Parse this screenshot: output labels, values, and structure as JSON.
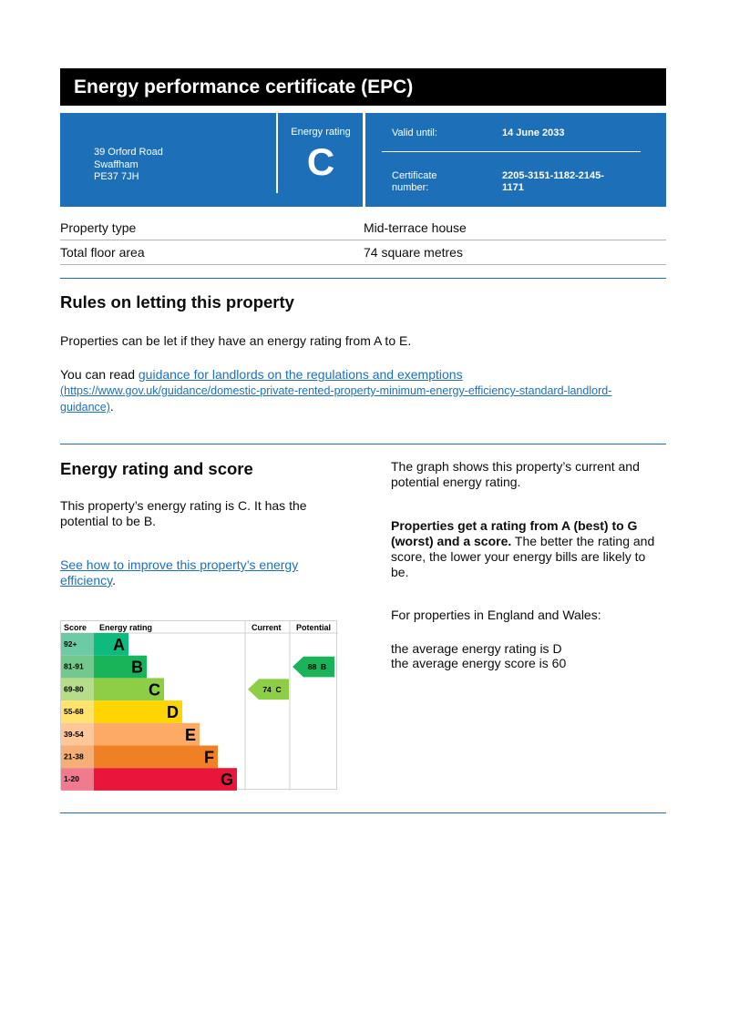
{
  "header": {
    "title": "Energy performance certificate (EPC)"
  },
  "summary": {
    "address": [
      "39 Orford Road",
      "Swaffham",
      "PE37 7JH"
    ],
    "energy_rating_label": "Energy rating",
    "energy_rating": "C",
    "valid_until_label": "Valid until:",
    "valid_until": "14 June 2033",
    "certificate_label": [
      "Certificate",
      "number:"
    ],
    "certificate_number": [
      "2205-3151-1182-2145-",
      "1171"
    ]
  },
  "property": [
    {
      "label": "Property type",
      "value": "Mid-terrace house"
    },
    {
      "label": "Total floor area",
      "value": "74 square metres"
    }
  ],
  "letting": {
    "heading": "Rules on letting this property",
    "text": "Properties can be let if they have an energy rating from A to E.",
    "read_prefix": "You can read ",
    "link_text": "guidance for landlords on the regulations and exemptions",
    "link_url_line1": "(https://www.gov.uk/guidance/domestic-private-rented-property-minimum-energy-efficiency-standard-landlord-",
    "link_url_line2": "guidance)",
    "end": "."
  },
  "rating": {
    "heading": "Energy rating and score",
    "text": "This property’s energy rating is C. It has the potential to be B.",
    "improve_link": "See how to improve this property’s energy efficiency",
    "improve_end": ".",
    "graph_text": "The graph shows this property’s current and potential energy rating.",
    "bold_text": "Properties get a rating from A (best) to G (worst) and a score.",
    "rest_text": " The better the rating and score, the lower your energy bills are likely to be.",
    "england_wales": "For properties in England and Wales:",
    "avg_rating": "the average energy rating is D",
    "avg_score": "the average energy score is 60"
  },
  "chart_data": {
    "type": "bar",
    "headers": {
      "score": "Score",
      "rating": "Energy rating",
      "current": "Current",
      "potential": "Potential"
    },
    "bands": [
      {
        "letter": "A",
        "range": "92+",
        "color": "#0fba7e",
        "light": "#6ccaa4"
      },
      {
        "letter": "B",
        "range": "81-91",
        "color": "#19b459",
        "light": "#73c98d"
      },
      {
        "letter": "C",
        "range": "69-80",
        "color": "#8dce46",
        "light": "#b6dd8a"
      },
      {
        "letter": "D",
        "range": "55-68",
        "color": "#ffd500",
        "light": "#ffe36c"
      },
      {
        "letter": "E",
        "range": "39-54",
        "color": "#fcaa65",
        "light": "#fdc79a"
      },
      {
        "letter": "F",
        "range": "21-38",
        "color": "#ef8023",
        "light": "#f5ae76"
      },
      {
        "letter": "G",
        "range": "1-20",
        "color": "#e9153b",
        "light": "#f07a8e"
      }
    ],
    "current": {
      "score": 74,
      "letter": "C",
      "label": "74  C"
    },
    "potential": {
      "score": 88,
      "letter": "B",
      "label": "88  B"
    }
  }
}
